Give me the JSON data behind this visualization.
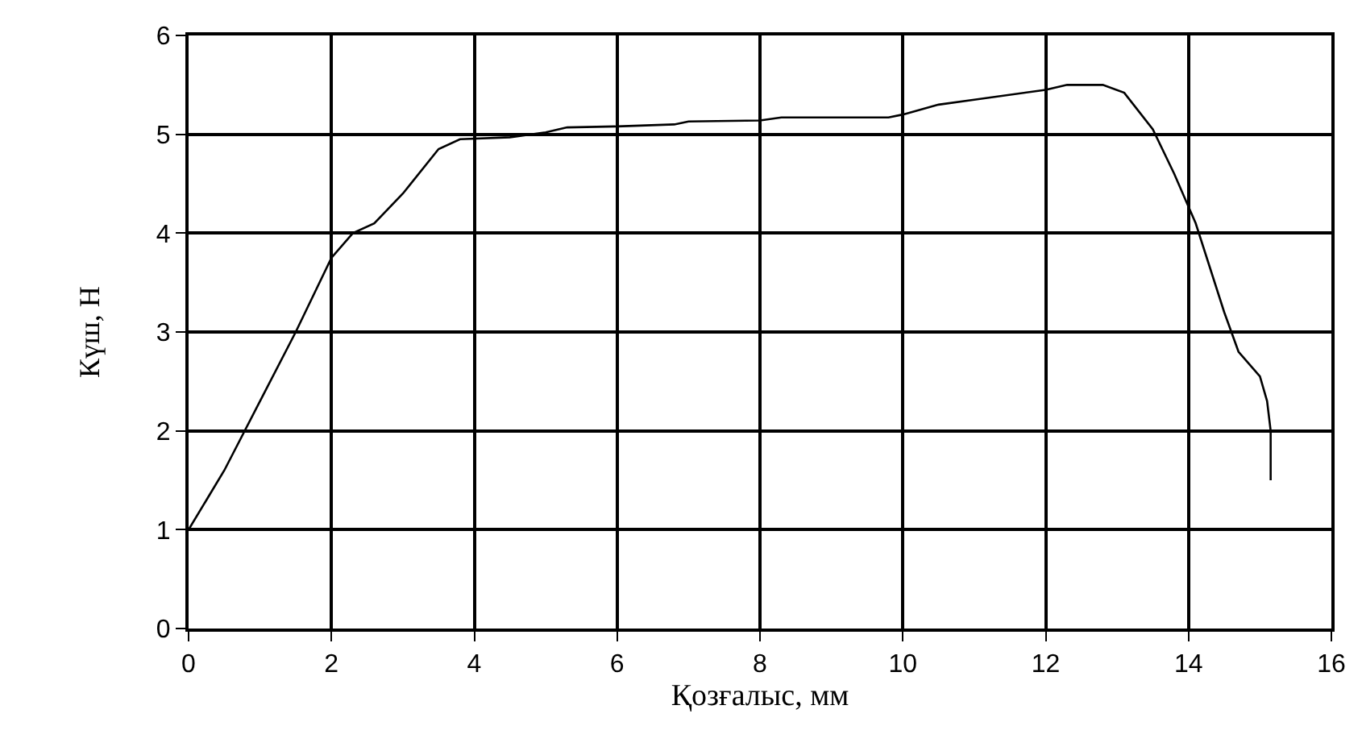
{
  "chart_data": {
    "type": "line",
    "xlabel": "Қозғалыс, мм",
    "ylabel": "Күш, Н",
    "x": [
      0,
      0.5,
      1,
      1.5,
      2,
      2.3,
      2.6,
      3,
      3.5,
      3.8,
      4.5,
      5,
      5.3,
      6,
      6.8,
      7,
      8,
      8.3,
      9.8,
      10,
      10.5,
      11,
      12,
      12.3,
      12.8,
      13.1,
      13.5,
      13.8,
      14.1,
      14.5,
      14.7,
      15,
      15.1,
      15.15,
      15.15
    ],
    "series": [
      {
        "color": "#000000",
        "values": [
          1,
          1.6,
          2.3,
          3.0,
          3.75,
          4.0,
          4.1,
          4.4,
          4.85,
          4.95,
          4.97,
          5.02,
          5.07,
          5.08,
          5.1,
          5.13,
          5.14,
          5.17,
          5.17,
          5.2,
          5.3,
          5.35,
          5.45,
          5.5,
          5.5,
          5.42,
          5.05,
          4.6,
          4.1,
          3.2,
          2.8,
          2.55,
          2.3,
          2.0,
          1.5
        ]
      }
    ],
    "xlim": [
      0,
      16
    ],
    "xticks": [
      0,
      2,
      4,
      6,
      8,
      10,
      12,
      14,
      16
    ],
    "ylim": [
      0,
      6
    ],
    "yticks": [
      0,
      1,
      2,
      3,
      4,
      5,
      6
    ],
    "grid": true,
    "legend": false,
    "marker": "none",
    "line_style": "solid"
  }
}
